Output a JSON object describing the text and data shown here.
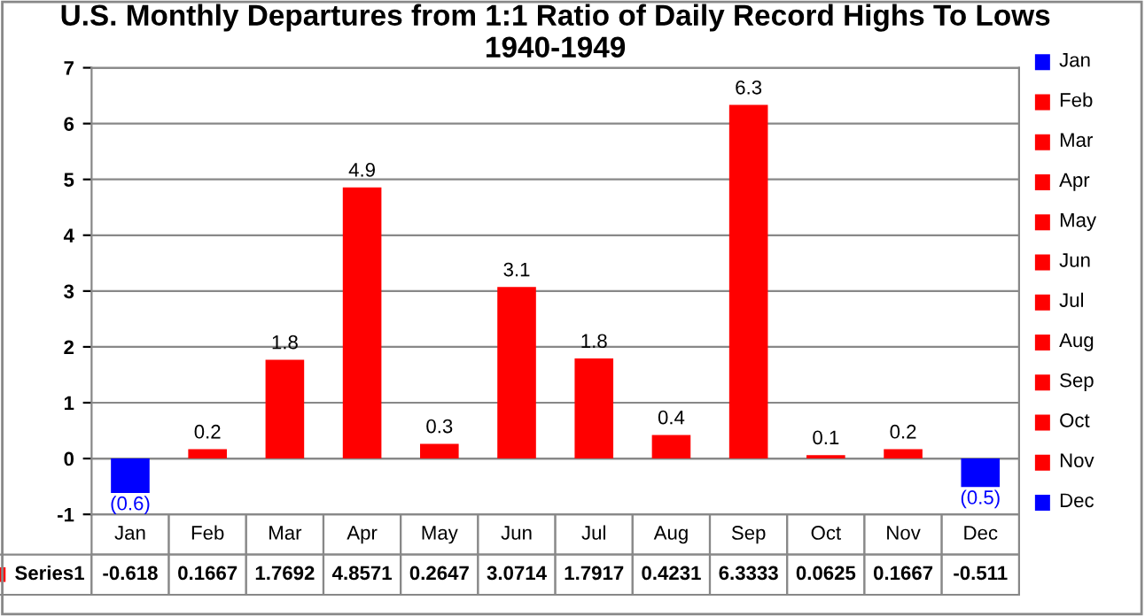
{
  "chart_data": {
    "type": "bar",
    "title": "U.S. Monthly Departures from 1:1 Ratio of Daily Record Highs To Lows 1940-1949",
    "categories": [
      "Jan",
      "Feb",
      "Mar",
      "Apr",
      "May",
      "Jun",
      "Jul",
      "Aug",
      "Sep",
      "Oct",
      "Nov",
      "Dec"
    ],
    "series": [
      {
        "name": "Series1",
        "values": [
          -0.618,
          0.1667,
          1.7692,
          4.8571,
          0.2647,
          3.0714,
          1.7917,
          0.4231,
          6.3333,
          0.0625,
          0.1667,
          -0.511
        ],
        "colors": [
          "#0000ff",
          "#ff0000",
          "#ff0000",
          "#ff0000",
          "#ff0000",
          "#ff0000",
          "#ff0000",
          "#ff0000",
          "#ff0000",
          "#ff0000",
          "#ff0000",
          "#0000ff"
        ]
      }
    ],
    "annotations": [
      {
        "text": "(0.6)",
        "x": "Jan",
        "y": -0.618
      },
      {
        "text": "0.2",
        "x": "Feb",
        "y": 0.1667
      },
      {
        "text": "1.8",
        "x": "Mar",
        "y": 1.7692
      },
      {
        "text": "4.9",
        "x": "Apr",
        "y": 4.8571
      },
      {
        "text": "0.3",
        "x": "May",
        "y": 0.2647
      },
      {
        "text": "3.1",
        "x": "Jun",
        "y": 3.0714
      },
      {
        "text": "1.8",
        "x": "Jul",
        "y": 1.7917
      },
      {
        "text": "0.4",
        "x": "Aug",
        "y": 0.4231
      },
      {
        "text": "6.3",
        "x": "Sep",
        "y": 6.3333
      },
      {
        "text": "0.1",
        "x": "Oct",
        "y": 0.0625
      },
      {
        "text": "0.2",
        "x": "Nov",
        "y": 0.1667
      },
      {
        "text": "(0.5)",
        "x": "Dec",
        "y": -0.511
      }
    ],
    "data_labels": true,
    "ylim": [
      -1,
      7
    ],
    "yticks": [
      -1,
      0,
      1,
      2,
      3,
      4,
      5,
      6,
      7
    ],
    "grid": "y",
    "legend": "bottom left"
  }
}
